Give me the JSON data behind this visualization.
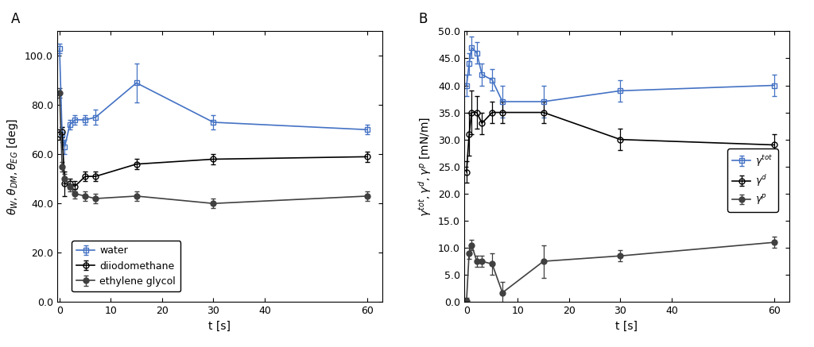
{
  "panel_A": {
    "title": "A",
    "xlabel": "t [s]",
    "ylim": [
      0,
      110
    ],
    "yticks": [
      0.0,
      20.0,
      40.0,
      60.0,
      80.0,
      100.0
    ],
    "xlim": [
      -0.5,
      63
    ],
    "xticks": [
      0,
      10,
      20,
      30,
      40,
      60
    ],
    "water": {
      "x": [
        0,
        0.5,
        1,
        2,
        3,
        5,
        7,
        15,
        30,
        60
      ],
      "y": [
        103,
        68,
        63,
        72,
        74,
        74,
        75,
        89,
        73,
        70
      ],
      "yerr": [
        2,
        3,
        3,
        2,
        2,
        2,
        3,
        8,
        3,
        2
      ],
      "color": "#4472c4",
      "marker": "s",
      "fillstyle": "none",
      "label": "water"
    },
    "diiodomethane": {
      "x": [
        0,
        0.5,
        1,
        2,
        3,
        5,
        7,
        15,
        30,
        60
      ],
      "y": [
        68,
        69,
        48,
        48,
        47,
        51,
        51,
        56,
        58,
        59
      ],
      "yerr": [
        2,
        2,
        5,
        2,
        2,
        2,
        2,
        2,
        2,
        2
      ],
      "color": "#000000",
      "marker": "o",
      "fillstyle": "none",
      "label": "diiodomethane"
    },
    "ethylene_glycol": {
      "x": [
        0,
        0.5,
        1,
        2,
        3,
        5,
        7,
        15,
        30,
        60
      ],
      "y": [
        85,
        55,
        50,
        47,
        44,
        43,
        42,
        43,
        40,
        43
      ],
      "yerr": [
        2,
        2,
        2,
        2,
        2,
        2,
        2,
        2,
        2,
        2
      ],
      "color": "#404040",
      "marker": "o",
      "fillstyle": "full",
      "label": "ethylene glycol"
    }
  },
  "panel_B": {
    "title": "B",
    "xlabel": "t [s]",
    "ylim": [
      0,
      50
    ],
    "yticks": [
      0.0,
      5.0,
      10.0,
      15.0,
      20.0,
      25.0,
      30.0,
      35.0,
      40.0,
      45.0,
      50.0
    ],
    "xlim": [
      -0.5,
      63
    ],
    "xticks": [
      0,
      10,
      20,
      30,
      40,
      60
    ],
    "gamma_tot": {
      "x": [
        0,
        0.5,
        1,
        2,
        3,
        5,
        7,
        15,
        30,
        60
      ],
      "y": [
        40,
        44,
        47,
        46,
        42,
        41,
        37,
        37,
        39,
        40
      ],
      "yerr": [
        2,
        2,
        2,
        2,
        2,
        2,
        3,
        3,
        2,
        2
      ],
      "color": "#4472c4",
      "marker": "s",
      "fillstyle": "none",
      "label": "$\\gamma^{tot}$"
    },
    "gamma_d": {
      "x": [
        0,
        0.5,
        1,
        2,
        3,
        5,
        7,
        15,
        30,
        60
      ],
      "y": [
        24,
        31,
        35,
        35,
        33,
        35,
        35,
        35,
        30,
        29
      ],
      "yerr": [
        2,
        4,
        4,
        3,
        2,
        2,
        2,
        2,
        2,
        2
      ],
      "color": "#000000",
      "marker": "o",
      "fillstyle": "none",
      "label": "$\\gamma^{d}$"
    },
    "gamma_p": {
      "x": [
        0,
        0.5,
        1,
        2,
        3,
        5,
        7,
        15,
        30,
        60
      ],
      "y": [
        0.2,
        9,
        10.5,
        7.5,
        7.5,
        7.0,
        1.7,
        7.5,
        8.5,
        11
      ],
      "yerr": [
        0.5,
        1,
        1,
        1,
        1,
        2,
        2,
        3,
        1,
        1
      ],
      "color": "#404040",
      "marker": "o",
      "fillstyle": "full",
      "label": "$\\gamma^{p}$"
    }
  },
  "figure": {
    "background_color": "#ffffff",
    "linewidth": 1.2,
    "markersize": 5,
    "capsize": 2.5,
    "elinewidth": 0.9
  }
}
